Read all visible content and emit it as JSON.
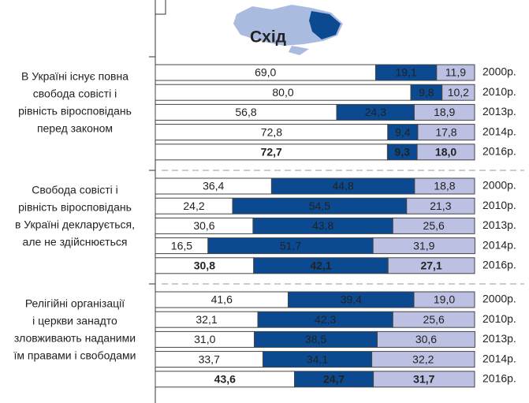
{
  "chart_data": {
    "type": "bar",
    "orientation": "horizontal",
    "stacked": true,
    "title": "Схід",
    "xlim": [
      0,
      100
    ],
    "groups": [
      {
        "label_lines": [
          "В Україні існує повна",
          "свобода совісті і",
          "рівність віросповідань",
          "перед законом"
        ],
        "categories": [
          "2000р.",
          "2010р.",
          "2013р.",
          "2014р.",
          "2016р."
        ],
        "series": [
          {
            "color": "#ffffff",
            "values": [
              69.0,
              80.0,
              56.8,
              72.8,
              72.7
            ],
            "value_labels": [
              "69,0",
              "80,0",
              "56,8",
              "72,8",
              "72,7"
            ]
          },
          {
            "color": "#0b4a90",
            "values": [
              19.1,
              9.8,
              24.3,
              9.4,
              9.3
            ],
            "value_labels": [
              "19,1",
              "9,8",
              "24,3",
              "9,4",
              "9,3"
            ]
          },
          {
            "color": "#bcc0e2",
            "values": [
              11.9,
              10.2,
              18.9,
              17.8,
              18.0
            ],
            "value_labels": [
              "11,9",
              "10,2",
              "18,9",
              "17,8",
              "18,0"
            ]
          }
        ]
      },
      {
        "label_lines": [
          "Свобода совісті і",
          "рівність віросповідань",
          "в Україні декларується,",
          "але не здійснюється"
        ],
        "categories": [
          "2000р.",
          "2010р.",
          "2013р.",
          "2014р.",
          "2016р."
        ],
        "series": [
          {
            "color": "#ffffff",
            "values": [
              36.4,
              24.2,
              30.6,
              16.5,
              30.8
            ],
            "value_labels": [
              "36,4",
              "24,2",
              "30,6",
              "16,5",
              "30,8"
            ]
          },
          {
            "color": "#0b4a90",
            "values": [
              44.8,
              54.5,
              43.8,
              51.7,
              42.1
            ],
            "value_labels": [
              "44,8",
              "54,5",
              "43,8",
              "51,7",
              "42,1"
            ]
          },
          {
            "color": "#bcc0e2",
            "values": [
              18.8,
              21.3,
              25.6,
              31.9,
              27.1
            ],
            "value_labels": [
              "18,8",
              "21,3",
              "25,6",
              "31,9",
              "27,1"
            ]
          }
        ]
      },
      {
        "label_lines": [
          "Релігійні організації",
          "і церкви занадто",
          "зловживають наданими",
          "їм правами і свободами"
        ],
        "categories": [
          "2000р.",
          "2010р.",
          "2013р.",
          "2014р.",
          "2016р."
        ],
        "series": [
          {
            "color": "#ffffff",
            "values": [
              41.6,
              32.1,
              31.0,
              33.7,
              43.6
            ],
            "value_labels": [
              "41,6",
              "32,1",
              "31,0",
              "33,7",
              "43,6"
            ]
          },
          {
            "color": "#0b4a90",
            "values": [
              39.4,
              42.3,
              38.5,
              34.1,
              24.7
            ],
            "value_labels": [
              "39,4",
              "42,3",
              "38,5",
              "34,1",
              "24,7"
            ]
          },
          {
            "color": "#bcc0e2",
            "values": [
              19.0,
              25.6,
              30.6,
              32.2,
              31.7
            ],
            "value_labels": [
              "19,0",
              "25,6",
              "30,6",
              "32,2",
              "31,7"
            ]
          }
        ]
      }
    ]
  }
}
